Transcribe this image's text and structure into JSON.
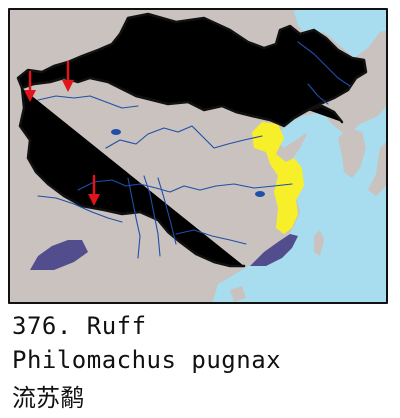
{
  "map": {
    "colors": {
      "sea": "#a8dcef",
      "land": "#c9c2be",
      "rivers": "#1f4fa8",
      "border": "#111111",
      "frame": "#111111",
      "occurrence_arrow": "#e0141b",
      "range_yellow": "#f7ef2a",
      "range_purple": "#524d8c"
    },
    "legend_semantics": {
      "red_arrows": "vagrant or scattered records",
      "yellow": "passage range",
      "purple": "wintering range"
    }
  },
  "caption": {
    "number_name": "376. Ruff",
    "scientific_name": "Philomachus pugnax",
    "chinese_name": "流苏鹬"
  }
}
